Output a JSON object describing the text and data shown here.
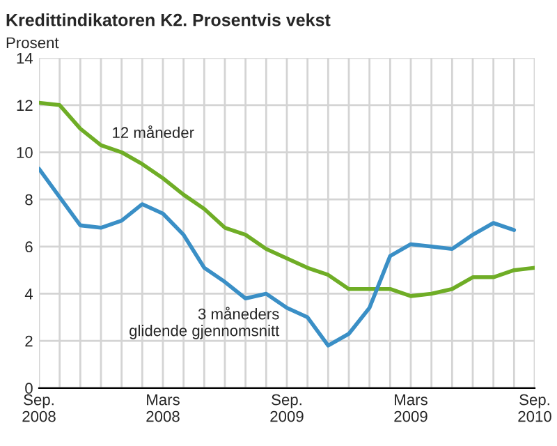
{
  "chart_data": {
    "type": "line",
    "title": "Kredittindikatoren K2. Prosentvis vekst",
    "ylabel": "Prosent",
    "categories": [
      "Sep.\n2008",
      null,
      null,
      null,
      null,
      null,
      "Mars\n2008",
      null,
      null,
      null,
      null,
      null,
      "Sep.\n2009",
      null,
      null,
      null,
      null,
      null,
      "Mars\n2009",
      null,
      null,
      null,
      null,
      null,
      "Sep.\n2010"
    ],
    "series": [
      {
        "color": "#6fad26",
        "values": [
          12.1,
          12.0,
          11.0,
          10.3,
          10.0,
          9.5,
          8.9,
          8.2,
          7.6,
          6.8,
          6.5,
          5.9,
          5.5,
          5.1,
          4.8,
          4.2,
          4.2,
          4.2,
          3.9,
          4.0,
          4.2,
          4.7,
          4.7,
          5.0,
          5.1
        ]
      },
      {
        "color": "#3a8fc6",
        "values": [
          9.3,
          8.1,
          6.9,
          6.8,
          7.1,
          7.8,
          7.4,
          6.5,
          5.1,
          4.5,
          3.8,
          4.0,
          3.4,
          3.0,
          1.8,
          2.3,
          3.4,
          5.6,
          6.1,
          6.0,
          5.9,
          6.5,
          7.0,
          6.7,
          null
        ]
      }
    ],
    "ylim": [
      0,
      14
    ],
    "yticks": [
      0,
      2,
      4,
      6,
      8,
      10,
      12,
      14
    ],
    "annotations": [
      "12 måneder",
      "3 måneders\nglidende gjennomsnitt"
    ],
    "grid": true,
    "marker": "none",
    "line_style": "solid"
  }
}
